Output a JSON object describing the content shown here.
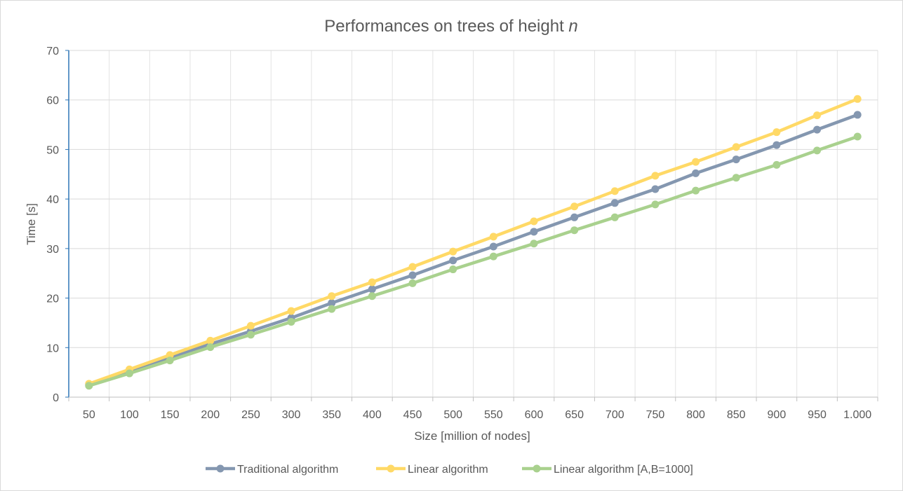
{
  "chart_data": {
    "type": "line",
    "title": "Performances on trees of height ",
    "title_italic": "n",
    "xlabel": "Size [million of nodes]",
    "ylabel": "Time [s]",
    "ylim": [
      0,
      70
    ],
    "y_ticks": [
      "0",
      "10",
      "20",
      "30",
      "40",
      "50",
      "60",
      "70"
    ],
    "categories": [
      "50",
      "100",
      "150",
      "200",
      "250",
      "300",
      "350",
      "400",
      "450",
      "500",
      "550",
      "600",
      "650",
      "700",
      "750",
      "800",
      "850",
      "900",
      "950",
      "1.000"
    ],
    "grid": true,
    "legend_position": "bottom",
    "series": [
      {
        "name": "Traditional algorithm",
        "color": "#8497b0",
        "values": [
          2.5,
          5.0,
          7.9,
          10.7,
          13.3,
          16.0,
          19.0,
          21.8,
          24.6,
          27.6,
          30.4,
          33.4,
          36.3,
          39.2,
          42.0,
          45.2,
          48.0,
          50.9,
          54.0,
          57.0
        ]
      },
      {
        "name": "Linear algorithm",
        "color": "#ffd966",
        "values": [
          2.7,
          5.6,
          8.5,
          11.4,
          14.4,
          17.4,
          20.4,
          23.2,
          26.3,
          29.4,
          32.4,
          35.5,
          38.5,
          41.6,
          44.7,
          47.5,
          50.5,
          53.5,
          56.9,
          60.2
        ]
      },
      {
        "name": "Linear algorithm [A,B=1000]",
        "color": "#a9d18e",
        "values": [
          2.3,
          4.8,
          7.4,
          10.1,
          12.6,
          15.2,
          17.8,
          20.4,
          23.0,
          25.8,
          28.4,
          31.0,
          33.7,
          36.3,
          38.9,
          41.7,
          44.3,
          46.9,
          49.8,
          52.6
        ]
      }
    ]
  }
}
